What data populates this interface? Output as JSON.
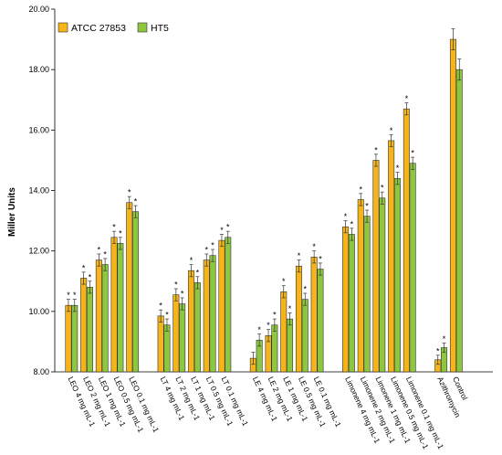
{
  "chart_data": {
    "type": "bar",
    "ylabel": "Miller Units",
    "ylim": [
      8.0,
      20.0
    ],
    "yticks": [
      "8.00",
      "10.00",
      "12.00",
      "14.00",
      "16.00",
      "18.00",
      "20.00"
    ],
    "grid": false,
    "legend_position": "top-left",
    "groups": [
      {
        "categories": [
          "LEO 4 mg mL-1",
          "LEO 2 mg mL-1",
          "LEO 1 mg mL-1",
          "LEO 0.5 mg mL-1",
          "LEO 0.1 mg mL-1"
        ]
      },
      {
        "categories": [
          "LT 4 mg mL-1",
          "LT 2 mg mL-1",
          "LT 1 mg mL-1",
          "LT 0.5 mg mL-1",
          "LT 0.1 mg mL-1"
        ]
      },
      {
        "categories": [
          "LE 4 mg mL-1",
          "LE 2 mg mL-1",
          "LE 1 mg mL-1",
          "LE 0.5 mg mL-1",
          "LE 0.1 mg mL-1"
        ]
      },
      {
        "categories": [
          "Limonene 4 mg mL-1",
          "Limonene 2 mg mL-1",
          "Limonene 1 mg mL-1",
          "Limonene 0.5 mg mL-1",
          "Limonene 0.1 mg mL-1"
        ]
      },
      {
        "categories": [
          "Azithromycin",
          "Control"
        ]
      }
    ],
    "series": [
      {
        "name": "ATCC 27853",
        "color": "#F5B41A",
        "values": [
          10.2,
          11.1,
          11.7,
          12.45,
          13.6,
          9.85,
          10.55,
          11.35,
          11.7,
          12.35,
          8.45,
          9.2,
          10.65,
          11.5,
          11.8,
          12.8,
          13.7,
          15.0,
          15.65,
          16.7,
          8.4,
          19.0
        ],
        "errors": [
          0.2,
          0.2,
          0.2,
          0.2,
          0.2,
          0.2,
          0.2,
          0.2,
          0.2,
          0.2,
          0.2,
          0.2,
          0.2,
          0.2,
          0.2,
          0.2,
          0.2,
          0.2,
          0.2,
          0.2,
          0.15,
          0.35
        ],
        "significant": [
          true,
          true,
          true,
          true,
          true,
          true,
          true,
          true,
          true,
          true,
          false,
          true,
          true,
          true,
          true,
          true,
          true,
          true,
          true,
          true,
          true,
          false
        ]
      },
      {
        "name": "HT5",
        "color": "#8DC63F",
        "values": [
          10.2,
          10.8,
          11.55,
          12.25,
          13.3,
          9.55,
          10.25,
          10.95,
          11.85,
          12.45,
          9.05,
          9.55,
          9.75,
          10.4,
          11.4,
          12.55,
          13.15,
          13.75,
          14.4,
          14.9,
          8.8,
          18.0
        ],
        "errors": [
          0.2,
          0.2,
          0.2,
          0.2,
          0.2,
          0.2,
          0.2,
          0.2,
          0.2,
          0.2,
          0.2,
          0.2,
          0.2,
          0.2,
          0.2,
          0.2,
          0.2,
          0.2,
          0.2,
          0.2,
          0.15,
          0.35
        ],
        "significant": [
          true,
          true,
          true,
          true,
          true,
          true,
          true,
          true,
          true,
          true,
          true,
          true,
          true,
          true,
          true,
          true,
          true,
          true,
          true,
          true,
          true,
          false
        ]
      }
    ],
    "significance_marker": "*"
  }
}
